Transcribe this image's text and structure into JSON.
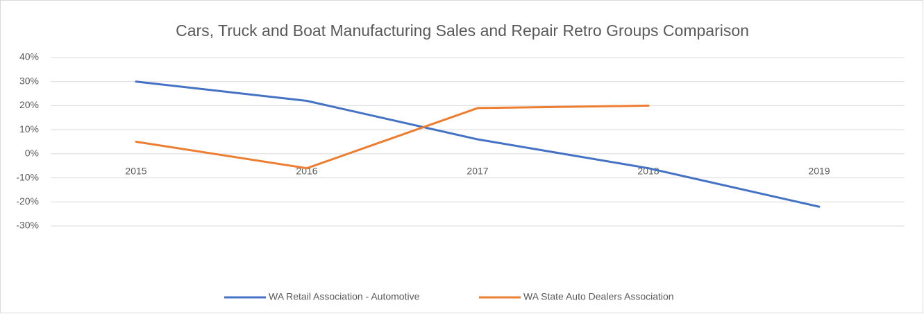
{
  "chart_data": {
    "type": "line",
    "title": "Cars, Truck and Boat Manufacturing Sales and Repair Retro Groups Comparison",
    "categories": [
      "2015",
      "2016",
      "2017",
      "2018",
      "2019"
    ],
    "series": [
      {
        "name": "WA Retail Association - Automotive",
        "color": "#4472c4",
        "values": [
          30,
          22,
          6,
          -6,
          -22
        ]
      },
      {
        "name": "WA State Auto Dealers Association",
        "color": "#ed7d31",
        "values": [
          5,
          -6,
          19,
          20,
          null
        ]
      }
    ],
    "ylim": [
      -30,
      40
    ],
    "yticks": [
      {
        "value": -30,
        "label": "-30%"
      },
      {
        "value": -20,
        "label": "-20%"
      },
      {
        "value": -10,
        "label": "-10%"
      },
      {
        "value": 0,
        "label": "0%"
      },
      {
        "value": 10,
        "label": "10%"
      },
      {
        "value": 20,
        "label": "20%"
      },
      {
        "value": 30,
        "label": "30%"
      },
      {
        "value": 40,
        "label": "40%"
      }
    ],
    "grid": true,
    "legend": "bottom"
  }
}
